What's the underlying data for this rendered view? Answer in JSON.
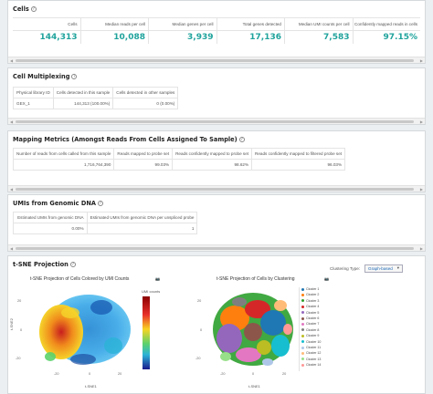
{
  "cells": {
    "title": "Cells",
    "headers": [
      "Cells",
      "Median reads per cell",
      "Median genes per cell",
      "Total genes detected",
      "Median UMI counts per cell",
      "Confidently mapped reads in cells"
    ],
    "values": [
      "144,313",
      "10,088",
      "3,939",
      "17,136",
      "7,583",
      "97.15%"
    ]
  },
  "multiplexing": {
    "title": "Cell Multiplexing",
    "headers": [
      "Physical library ID",
      "Cells detected in this sample",
      "Cells detected in other samples"
    ],
    "row": [
      "GEX_1",
      "144,313 (100.00%)",
      "0 (0.00%)"
    ]
  },
  "mapping": {
    "title": "Mapping Metrics (Amongst Reads From Cells Assigned To Sample)",
    "headers": [
      "Number of reads from cells called from this sample",
      "Reads mapped to probe set",
      "Reads confidently mapped to probe set",
      "Reads confidently mapped to filtered probe set"
    ],
    "row": [
      "1,716,764,390",
      "99.03%",
      "98.62%",
      "96.03%"
    ]
  },
  "umis": {
    "title": "UMIs from Genomic DNA",
    "headers": [
      "Estimated UMIs from genomic DNA",
      "Estimated UMIs from genomic DNA per unspliced probe"
    ],
    "row": [
      "0.00%",
      "1"
    ]
  },
  "tsne": {
    "title": "t-SNE Projection",
    "clustering_label": "Clustering Type:",
    "clustering_value": "Graph-based",
    "left_plot": {
      "title": "t-SNE Projection of Cells Colored by UMI Counts",
      "xlabel": "t-SNE1",
      "ylabel": "t-SNE2",
      "colorbar_title": "UMI counts",
      "x_ticks": [
        "-20",
        "0",
        "20"
      ],
      "y_ticks": [
        "20",
        "0",
        "-20"
      ]
    },
    "right_plot": {
      "title": "t-SNE Projection of Cells by Clustering",
      "xlabel": "t-SNE1",
      "x_ticks": [
        "-20",
        "0",
        "20"
      ],
      "y_ticks": [
        "20",
        "0",
        "-20"
      ],
      "clusters": [
        {
          "name": "Cluster 1",
          "color": "#1f77b4"
        },
        {
          "name": "Cluster 2",
          "color": "#ff7f0e"
        },
        {
          "name": "Cluster 3",
          "color": "#2ca02c"
        },
        {
          "name": "Cluster 4",
          "color": "#d62728"
        },
        {
          "name": "Cluster 5",
          "color": "#9467bd"
        },
        {
          "name": "Cluster 6",
          "color": "#8c564b"
        },
        {
          "name": "Cluster 7",
          "color": "#e377c2"
        },
        {
          "name": "Cluster 8",
          "color": "#7f7f7f"
        },
        {
          "name": "Cluster 9",
          "color": "#bcbd22"
        },
        {
          "name": "Cluster 10",
          "color": "#17becf"
        },
        {
          "name": "Cluster 11",
          "color": "#aec7e8"
        },
        {
          "name": "Cluster 12",
          "color": "#ffbb78"
        },
        {
          "name": "Cluster 13",
          "color": "#98df8a"
        },
        {
          "name": "Cluster 14",
          "color": "#ff9896"
        }
      ]
    }
  }
}
